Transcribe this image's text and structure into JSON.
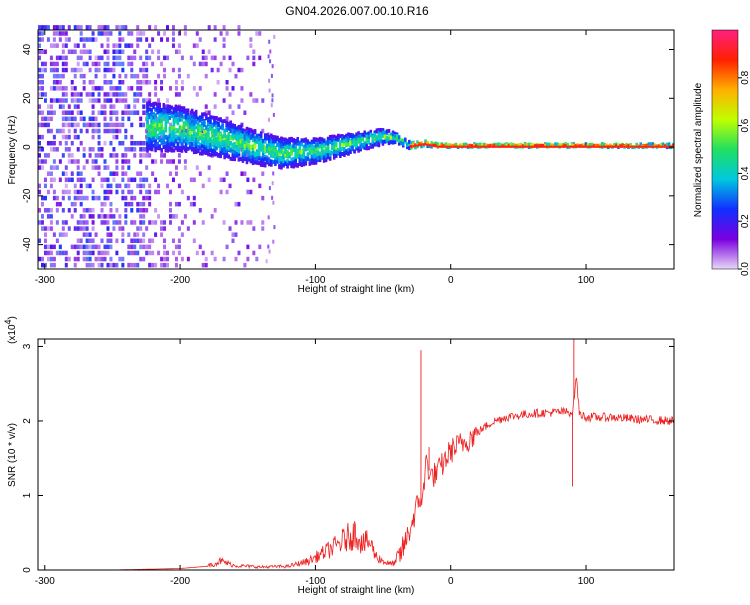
{
  "chart_data": [
    {
      "type": "heatmap",
      "title": "GN04.2026.007.00.10.R16",
      "xlabel": "Height of straight line (km)",
      "ylabel": "Frequency (Hz)",
      "xlim": [
        -305,
        165
      ],
      "ylim": [
        -50,
        48
      ],
      "x_ticks": [
        -300,
        -200,
        -100,
        0,
        100
      ],
      "y_ticks": [
        -40,
        -20,
        0,
        20,
        40
      ],
      "colorbar": {
        "label": "Normalized spectral amplitude",
        "range": [
          0.0,
          1.0
        ],
        "ticks": [
          "0.0",
          "0.2",
          "0.4",
          "0.6",
          "0.8"
        ],
        "tick_values": [
          0.0,
          0.2,
          0.4,
          0.6,
          0.8
        ],
        "colors": [
          "#e8d8f8",
          "#7a00e0",
          "#1030ff",
          "#00c8e0",
          "#20e060",
          "#c0ff00",
          "#ffb000",
          "#ff2000",
          "#ff2080"
        ]
      },
      "ridge": {
        "x": [
          -225,
          -200,
          -175,
          -150,
          -125,
          -100,
          -75,
          -50,
          -40,
          -30,
          -20,
          -10,
          0,
          50,
          100,
          165
        ],
        "f": [
          8,
          7,
          4,
          0,
          -3,
          -2,
          1,
          4,
          3,
          0,
          1,
          0,
          0,
          0,
          0,
          0
        ],
        "spread": [
          10,
          9,
          8,
          7,
          6,
          5,
          4,
          3,
          2,
          1.5,
          1.2,
          1,
          0.8,
          0.8,
          0.8,
          0.8
        ]
      }
    },
    {
      "type": "line",
      "xlabel": "Height of straight line (km)",
      "ylabel": "SNR (10 * v/v)",
      "y_multiplier": "(x10",
      "y_multiplier_exp": "4",
      "y_multiplier_close": ")",
      "xlim": [
        -305,
        165
      ],
      "ylim": [
        0,
        3.1
      ],
      "x_ticks": [
        -300,
        -200,
        -100,
        0,
        100
      ],
      "y_ticks": [
        0,
        1,
        2,
        3
      ],
      "color": "#ee2020",
      "series": [
        {
          "name": "SNR",
          "x": [
            -305,
            -250,
            -200,
            -180,
            -170,
            -160,
            -140,
            -120,
            -105,
            -95,
            -85,
            -75,
            -70,
            -65,
            -60,
            -55,
            -50,
            -45,
            -40,
            -35,
            -30,
            -25,
            -20,
            -18,
            -15,
            -10,
            -5,
            0,
            10,
            20,
            30,
            40,
            60,
            80,
            90,
            93,
            95,
            100,
            120,
            140,
            165
          ],
          "values": [
            0.0,
            0.0,
            0.02,
            0.05,
            0.12,
            0.06,
            0.04,
            0.05,
            0.12,
            0.22,
            0.32,
            0.45,
            0.5,
            0.35,
            0.38,
            0.18,
            0.12,
            0.08,
            0.1,
            0.3,
            0.55,
            0.85,
            1.05,
            1.5,
            1.25,
            1.3,
            1.45,
            1.6,
            1.72,
            1.85,
            1.98,
            2.05,
            2.1,
            2.12,
            2.12,
            2.6,
            2.1,
            2.05,
            2.05,
            2.02,
            2.0
          ],
          "spikes": [
            {
              "x": -22,
              "y": 2.95
            },
            {
              "x": -16,
              "y": 1.65
            },
            {
              "x": 91,
              "y": 3.1
            },
            {
              "x": 90,
              "y": 1.12
            }
          ]
        }
      ]
    }
  ]
}
